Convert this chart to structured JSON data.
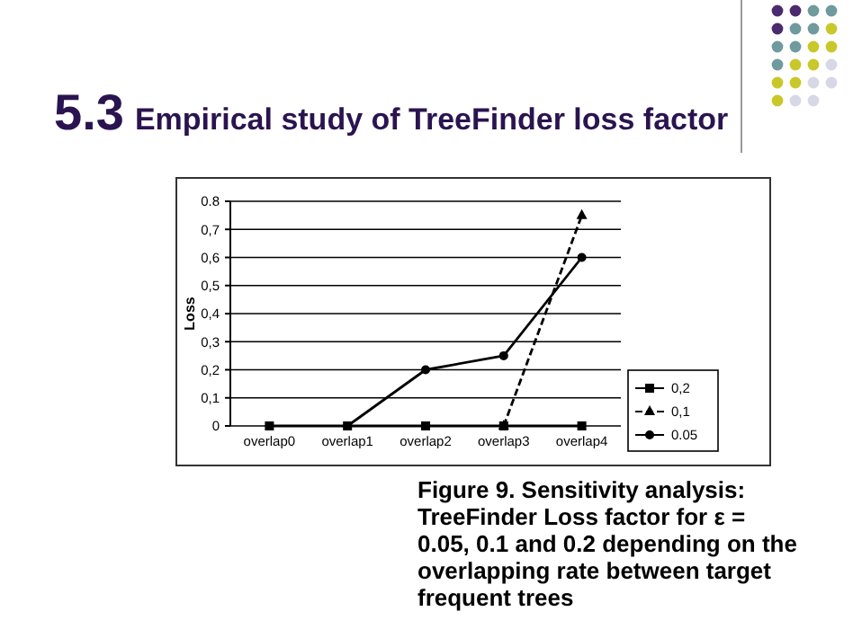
{
  "chart_data": {
    "type": "line",
    "title": "5.3 Empirical study of TreeFinder loss factor",
    "ylabel": "Loss",
    "categories": [
      "overlap0",
      "overlap1",
      "overlap2",
      "overlap3",
      "overlap4"
    ],
    "series": [
      {
        "name": "0,2",
        "color": "#000000",
        "values": [
          0,
          0,
          0,
          0,
          0
        ],
        "marker": "square",
        "line_style": "solid"
      },
      {
        "name": "0,1",
        "color": "#000000",
        "values": [
          null,
          null,
          null,
          0,
          0.75
        ],
        "marker": "triangle",
        "line_style": "dashed"
      },
      {
        "name": "0.05",
        "color": "#000000",
        "values": [
          null,
          0,
          0.2,
          0.25,
          0.6
        ],
        "marker": "circle",
        "line_style": "solid"
      }
    ],
    "ylim": [
      0,
      0.8
    ],
    "yticks": [
      0,
      {
        "value": 0.1,
        "label": "0,1"
      },
      {
        "value": 0.2,
        "label": "0,2"
      },
      {
        "value": 0.3,
        "label": "0,3"
      },
      {
        "value": 0.4,
        "label": "0,4"
      },
      {
        "value": 0.5,
        "label": "0,5"
      },
      {
        "value": 0.6,
        "label": "0,6"
      },
      {
        "value": 0.7,
        "label": "0,7"
      },
      {
        "value": 0.8,
        "label": "0.8"
      }
    ],
    "grid": "y",
    "legend": "right",
    "annotations": [
      "Figure 9. Sensitivity analysis: TreeFinder Loss factor for ε = 0.05, 0.1 and 0.2 depending on the overlapping rate between target frequent trees"
    ]
  }
}
